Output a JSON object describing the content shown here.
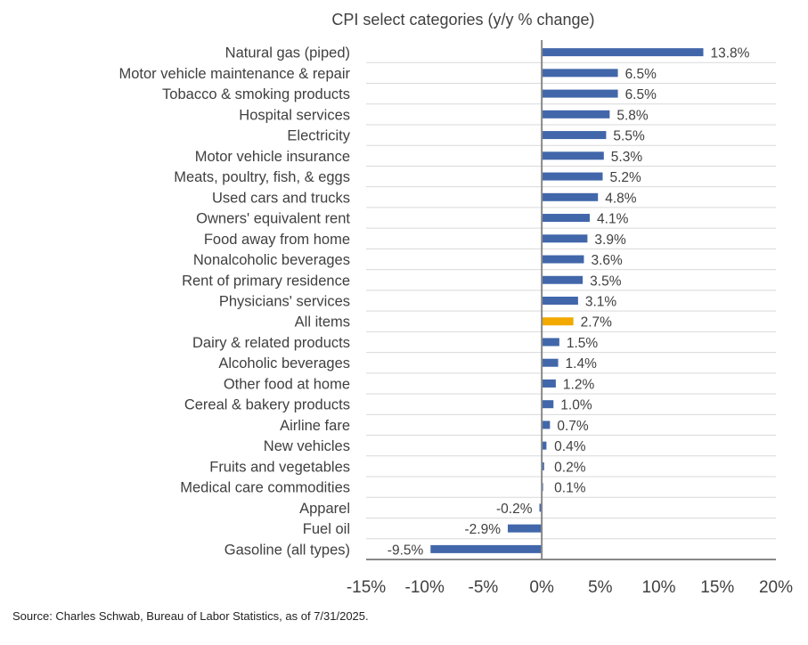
{
  "chart_data": {
    "type": "bar",
    "orientation": "horizontal",
    "title": "CPI select categories (y/y % change)",
    "xlabel": "",
    "ylabel": "",
    "xlim": [
      -15,
      20
    ],
    "xticks": [
      -15,
      -10,
      -5,
      0,
      5,
      10,
      15,
      20
    ],
    "xtick_labels": [
      "-15%",
      "-10%",
      "-5%",
      "0%",
      "5%",
      "10%",
      "15%",
      "20%"
    ],
    "grid": "horizontal separators between categories",
    "colors": {
      "default": "#4167AA",
      "highlight": "#F2A900"
    },
    "highlight_category": "All items",
    "categories": [
      "Natural gas (piped)",
      "Motor vehicle maintenance & repair",
      "Tobacco & smoking products",
      "Hospital services",
      "Electricity",
      "Motor vehicle insurance",
      "Meats, poultry, fish, & eggs",
      "Used cars and trucks",
      "Owners' equivalent rent",
      "Food away from home",
      "Nonalcoholic beverages",
      "Rent of primary residence",
      "Physicians' services",
      "All items",
      "Dairy & related products",
      "Alcoholic beverages",
      "Other food at home",
      "Cereal & bakery products",
      "Airline fare",
      "New vehicles",
      "Fruits and vegetables",
      "Medical care commodities",
      "Apparel",
      "Fuel oil",
      "Gasoline (all types)"
    ],
    "values": [
      13.8,
      6.5,
      6.5,
      5.8,
      5.5,
      5.3,
      5.2,
      4.8,
      4.1,
      3.9,
      3.6,
      3.5,
      3.1,
      2.7,
      1.5,
      1.4,
      1.2,
      1.0,
      0.7,
      0.4,
      0.2,
      0.1,
      -0.2,
      -2.9,
      -9.5
    ],
    "data_labels": [
      "13.8%",
      "6.5%",
      "6.5%",
      "5.8%",
      "5.5%",
      "5.3%",
      "5.2%",
      "4.8%",
      "4.1%",
      "3.9%",
      "3.6%",
      "3.5%",
      "3.1%",
      "2.7%",
      "1.5%",
      "1.4%",
      "1.2%",
      "1.0%",
      "0.7%",
      "0.4%",
      "0.2%",
      "0.1%",
      "-0.2%",
      "-2.9%",
      "-9.5%"
    ]
  },
  "source": "Source: Charles Schwab, Bureau of Labor Statistics, as of 7/31/2025."
}
